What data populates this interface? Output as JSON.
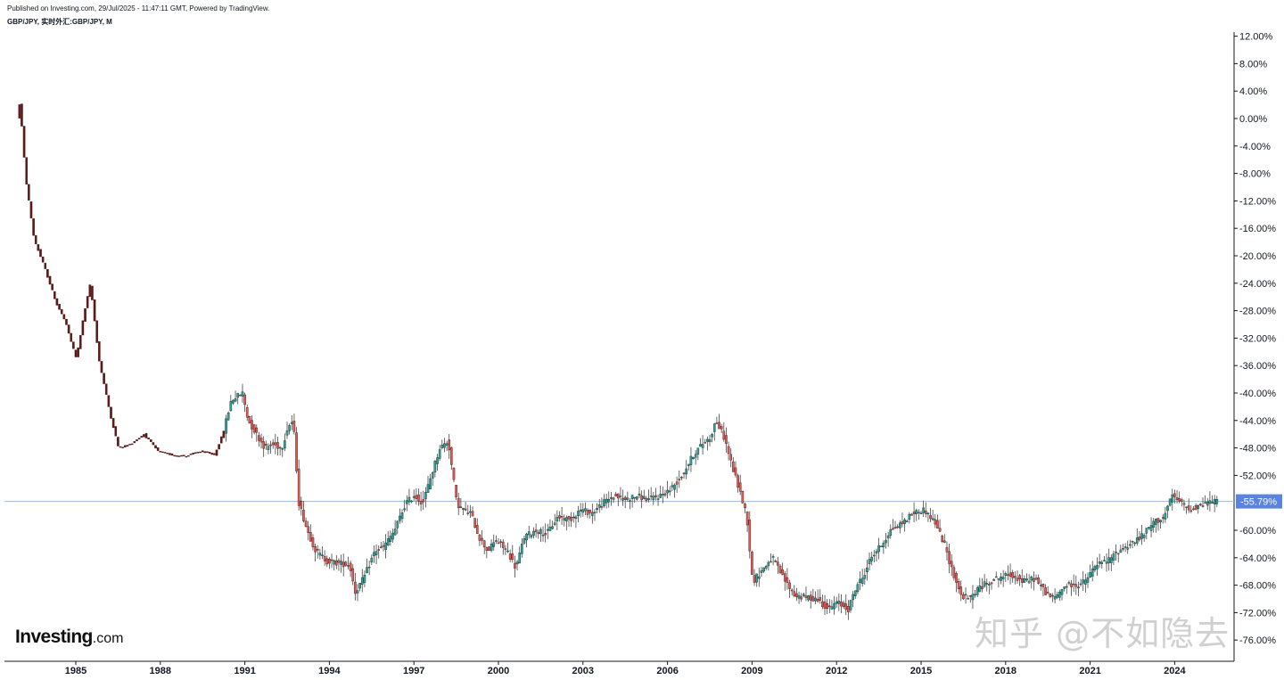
{
  "header": {
    "published": "Published on Investing.com, 29/Jul/2025 - 11:47:11 GMT, Powered by TradingView.",
    "symbol": "GBP/JPY, 实时外汇:GBP/JPY, M"
  },
  "logo": {
    "main": "Investing",
    "suffix": ".com"
  },
  "watermark": "知乎 @不如隐去",
  "colors": {
    "up": "#26a69a",
    "down": "#ef5350",
    "line": "#9bbad6",
    "label_bg": "#5b83e0",
    "axis": "#131722"
  },
  "chart_data": {
    "type": "candlestick",
    "title": "",
    "scale": "percent",
    "yticks": [
      "12.00%",
      "8.00%",
      "4.00%",
      "0.00%",
      "-4.00%",
      "-8.00%",
      "-12.00%",
      "-16.00%",
      "-20.00%",
      "-24.00%",
      "-28.00%",
      "-32.00%",
      "-36.00%",
      "-40.00%",
      "-44.00%",
      "-48.00%",
      "-52.00%",
      "-60.00%",
      "-64.00%",
      "-68.00%",
      "-72.00%",
      "-76.00%"
    ],
    "ylim": [
      -78,
      13
    ],
    "xticks": [
      "1985",
      "1988",
      "1991",
      "1994",
      "1997",
      "2000",
      "2003",
      "2006",
      "2009",
      "2012",
      "2015",
      "2018",
      "2021",
      "2024"
    ],
    "xlim": [
      1983.0,
      2026.4
    ],
    "current_value": -55.79,
    "current_label": "-55.79%",
    "series": [
      {
        "granularity": "key points",
        "x": [
          1983.0,
          1983.1,
          1983.3,
          1983.6,
          1984.0,
          1984.4,
          1984.7,
          1985.1,
          1985.4,
          1985.6,
          1985.9,
          1986.3,
          1986.6,
          1987.0,
          1987.5,
          1988.0,
          1988.5,
          1989.0,
          1989.5,
          1990.0,
          1990.3,
          1990.6,
          1990.8,
          1991.0,
          1991.2,
          1991.5,
          1991.8,
          1992.1,
          1992.4,
          1992.6,
          1992.8,
          1993.0,
          1993.3,
          1993.6,
          1994.0,
          1994.4,
          1994.8,
          1995.0,
          1995.3,
          1995.7,
          1996.0,
          1996.4,
          1996.8,
          1997.1,
          1997.4,
          1997.7,
          1998.0,
          1998.3,
          1998.6,
          1998.8,
          1999.1,
          1999.4,
          1999.7,
          2000.0,
          2000.4,
          2000.7,
          2001.0,
          2001.4,
          2001.8,
          2002.2,
          2002.6,
          2003.0,
          2003.4,
          2003.8,
          2004.2,
          2004.6,
          2005.0,
          2005.4,
          2005.8,
          2006.2,
          2006.6,
          2007.0,
          2007.3,
          2007.6,
          2007.8,
          2008.1,
          2008.4,
          2008.7,
          2008.9,
          2009.1,
          2009.4,
          2009.8,
          2010.2,
          2010.6,
          2011.0,
          2011.4,
          2011.8,
          2012.1,
          2012.5,
          2012.8,
          2013.0,
          2013.3,
          2013.7,
          2014.0,
          2014.4,
          2014.8,
          2015.2,
          2015.6,
          2015.9,
          2016.2,
          2016.5,
          2016.8,
          2017.1,
          2017.5,
          2017.9,
          2018.3,
          2018.7,
          2019.1,
          2019.5,
          2019.8,
          2020.2,
          2020.6,
          2020.9,
          2021.3,
          2021.7,
          2022.1,
          2022.5,
          2022.9,
          2023.3,
          2023.7,
          2024.0,
          2024.3,
          2024.6,
          2024.9,
          2025.2,
          2025.5
        ],
        "values": [
          0.0,
          2.5,
          -8.5,
          -17.5,
          -22.0,
          -27.0,
          -29.5,
          -35.0,
          -28.0,
          -24.0,
          -35.0,
          -43.0,
          -48.0,
          -47.5,
          -46.0,
          -48.5,
          -49.0,
          -49.2,
          -48.5,
          -49.0,
          -46.0,
          -41.0,
          -40.5,
          -40.0,
          -44.0,
          -46.0,
          -48.0,
          -47.5,
          -48.0,
          -45.0,
          -44.0,
          -56.0,
          -60.0,
          -63.0,
          -64.5,
          -64.8,
          -65.0,
          -69.0,
          -67.0,
          -63.0,
          -62.5,
          -60.0,
          -56.0,
          -55.0,
          -56.0,
          -52.0,
          -48.0,
          -47.0,
          -56.0,
          -57.0,
          -57.5,
          -61.0,
          -63.0,
          -61.5,
          -63.0,
          -65.5,
          -61.0,
          -60.0,
          -60.5,
          -58.0,
          -58.5,
          -57.0,
          -57.5,
          -56.0,
          -55.0,
          -55.5,
          -55.0,
          -55.5,
          -55.0,
          -54.0,
          -52.0,
          -49.0,
          -47.5,
          -46.5,
          -44.0,
          -46.5,
          -51.0,
          -55.0,
          -58.0,
          -67.5,
          -66.0,
          -64.0,
          -67.0,
          -69.5,
          -69.8,
          -70.0,
          -71.5,
          -70.5,
          -71.5,
          -68.0,
          -67.0,
          -64.0,
          -62.0,
          -60.0,
          -59.0,
          -57.5,
          -57.0,
          -59.0,
          -62.0,
          -66.0,
          -69.5,
          -70.0,
          -68.5,
          -67.5,
          -66.8,
          -66.5,
          -67.5,
          -67.0,
          -69.0,
          -70.0,
          -68.0,
          -68.0,
          -67.5,
          -65.0,
          -64.5,
          -63.0,
          -62.0,
          -61.0,
          -59.0,
          -58.0,
          -55.0,
          -56.0,
          -57.0,
          -56.5,
          -56.0,
          -55.8
        ]
      }
    ]
  }
}
